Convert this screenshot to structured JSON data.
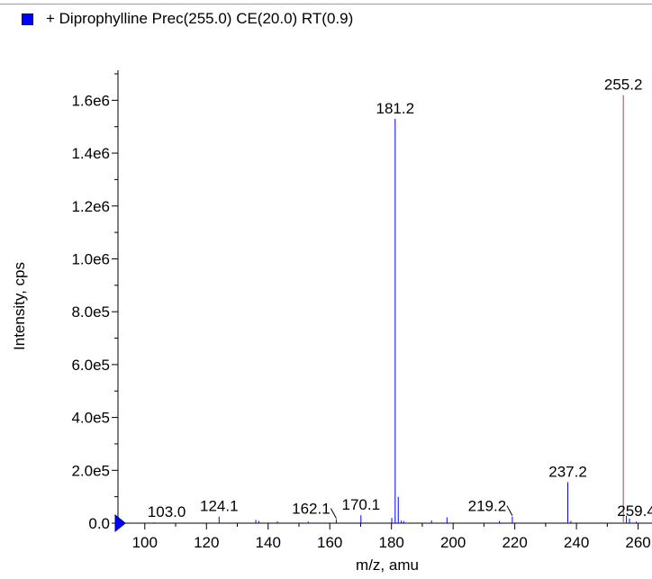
{
  "legend": {
    "text": "+ Diprophylline Prec(255.0) CE(20.0) RT(0.9)",
    "swatch_color": "#0000ff"
  },
  "chart_data": {
    "type": "bar",
    "title": "",
    "xlabel": "m/z, amu",
    "ylabel": "Intensity, cps",
    "xlim": [
      91.3,
      264.5
    ],
    "ylim": [
      0,
      1700000
    ],
    "x_ticks": [
      100,
      120,
      140,
      160,
      180,
      200,
      220,
      240,
      260
    ],
    "x_tick_labels": [
      "100",
      "120",
      "140",
      "160",
      "180",
      "200",
      "220",
      "240",
      "260"
    ],
    "y_ticks": [
      0,
      200000,
      400000,
      600000,
      800000,
      1000000,
      1200000,
      1400000,
      1600000
    ],
    "y_tick_labels": [
      "0.0",
      "2.0e5",
      "4.0e5",
      "6.0e5",
      "8.0e5",
      "1.0e6",
      "1.2e6",
      "1.4e6",
      "1.6e6"
    ],
    "series_color": "#0000ff",
    "precursor_color": "#8b5050",
    "peaks": [
      {
        "mz": 103.0,
        "intensity": 3000
      },
      {
        "mz": 124.1,
        "intensity": 25000
      },
      {
        "mz": 136.0,
        "intensity": 12000
      },
      {
        "mz": 137.0,
        "intensity": 8000
      },
      {
        "mz": 143.0,
        "intensity": 7000
      },
      {
        "mz": 153.0,
        "intensity": 6000
      },
      {
        "mz": 162.1,
        "intensity": 15000
      },
      {
        "mz": 170.1,
        "intensity": 30000
      },
      {
        "mz": 180.1,
        "intensity": 20000
      },
      {
        "mz": 181.2,
        "intensity": 1530000
      },
      {
        "mz": 182.2,
        "intensity": 100000
      },
      {
        "mz": 183.2,
        "intensity": 10000
      },
      {
        "mz": 184.0,
        "intensity": 8000
      },
      {
        "mz": 193.0,
        "intensity": 10000
      },
      {
        "mz": 198.0,
        "intensity": 22000
      },
      {
        "mz": 215.0,
        "intensity": 8000
      },
      {
        "mz": 219.2,
        "intensity": 25000
      },
      {
        "mz": 237.2,
        "intensity": 155000
      },
      {
        "mz": 238.2,
        "intensity": 8000
      },
      {
        "mz": 255.2,
        "intensity": 1620000,
        "precursor": true
      },
      {
        "mz": 256.2,
        "intensity": 28000
      },
      {
        "mz": 257.2,
        "intensity": 18000
      },
      {
        "mz": 259.4,
        "intensity": 6000
      }
    ],
    "annotations": [
      {
        "text": "103.0",
        "mz": 103.0
      },
      {
        "text": "124.1",
        "mz": 124.1
      },
      {
        "text": "162.1",
        "mz": 162.1
      },
      {
        "text": "170.1",
        "mz": 170.1
      },
      {
        "text": "181.2",
        "mz": 181.2
      },
      {
        "text": "219.2",
        "mz": 219.2
      },
      {
        "text": "237.2",
        "mz": 237.2
      },
      {
        "text": "255.2",
        "mz": 255.2
      },
      {
        "text": "259.4",
        "mz": 259.4
      }
    ],
    "grid": false,
    "legend_position": "top-left"
  }
}
